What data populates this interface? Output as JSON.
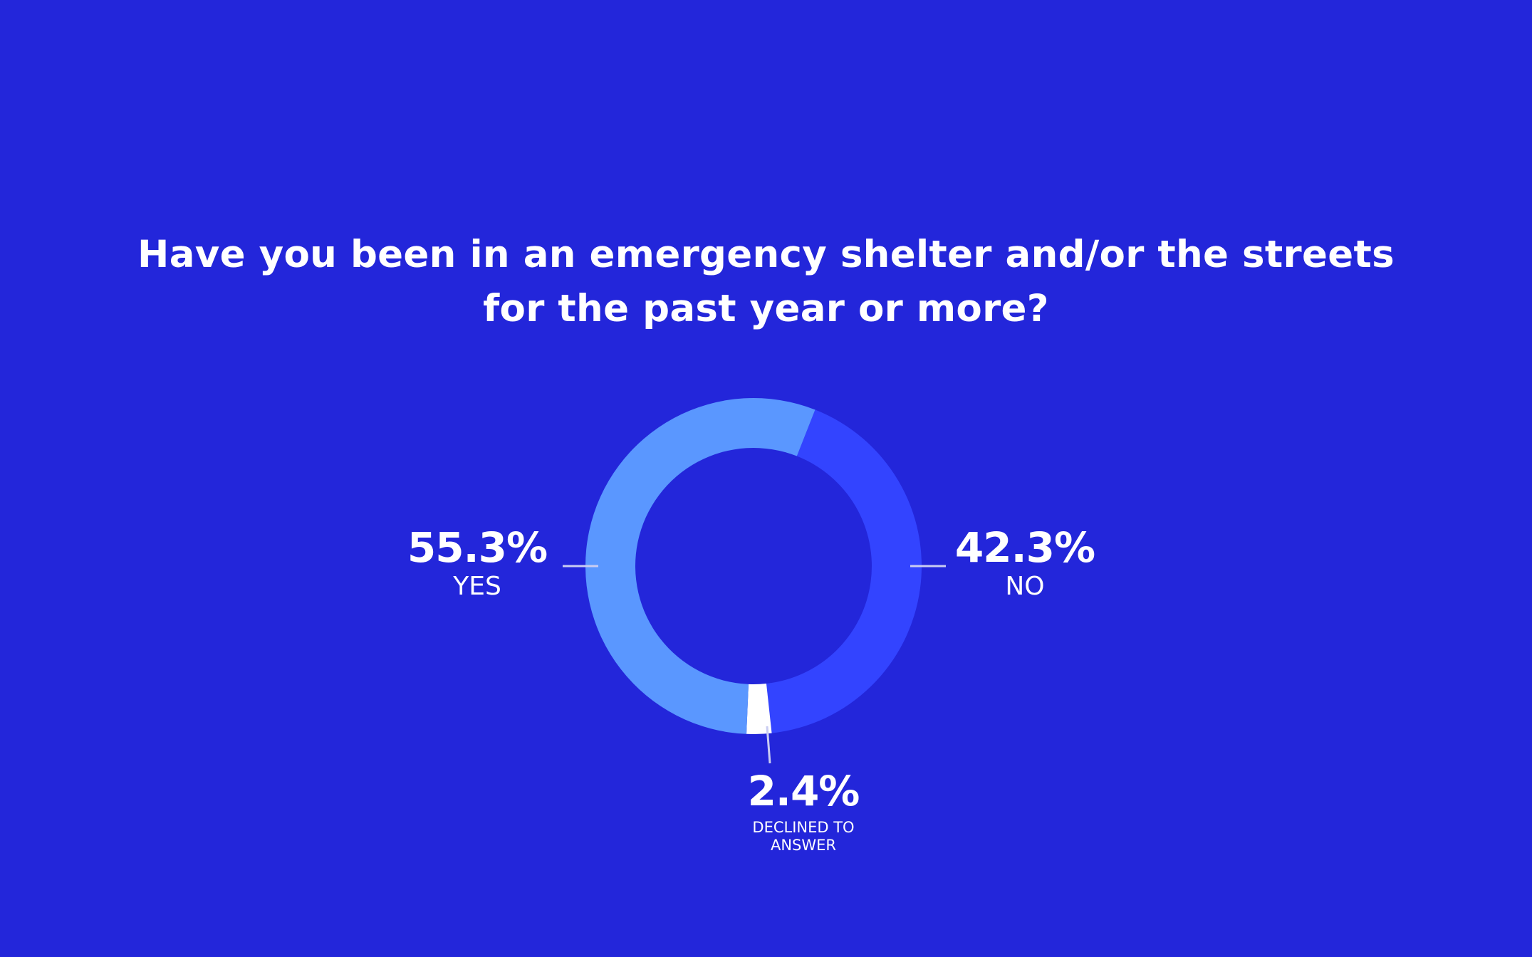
{
  "title_lines": [
    "Have you been in an emergency shelter and/or the streets",
    "for the past year or more?"
  ],
  "chart_data": {
    "type": "pie",
    "style": "donut",
    "title": "Have you been in an emergency shelter and/or the streets for the past year or more?",
    "series": [
      {
        "name": "",
        "slices": [
          {
            "label": "NO",
            "value": 42.3,
            "display": "42.3%",
            "color": "#3344ff"
          },
          {
            "label": "DECLINED TO ANSWER",
            "value": 2.4,
            "display": "2.4%",
            "color": "#ffffff"
          },
          {
            "label": "YES",
            "value": 55.3,
            "display": "55.3%",
            "color": "#5a97ff"
          }
        ]
      }
    ],
    "labels": {
      "yes": {
        "value": "55.3%",
        "name": "YES"
      },
      "no": {
        "value": "42.3%",
        "name": "NO"
      },
      "declined": {
        "value": "2.4%",
        "name_lines": [
          "DECLINED TO",
          "ANSWER"
        ]
      }
    }
  },
  "colors": {
    "background": "#2326da",
    "leader_line": "#c9ccf2"
  }
}
